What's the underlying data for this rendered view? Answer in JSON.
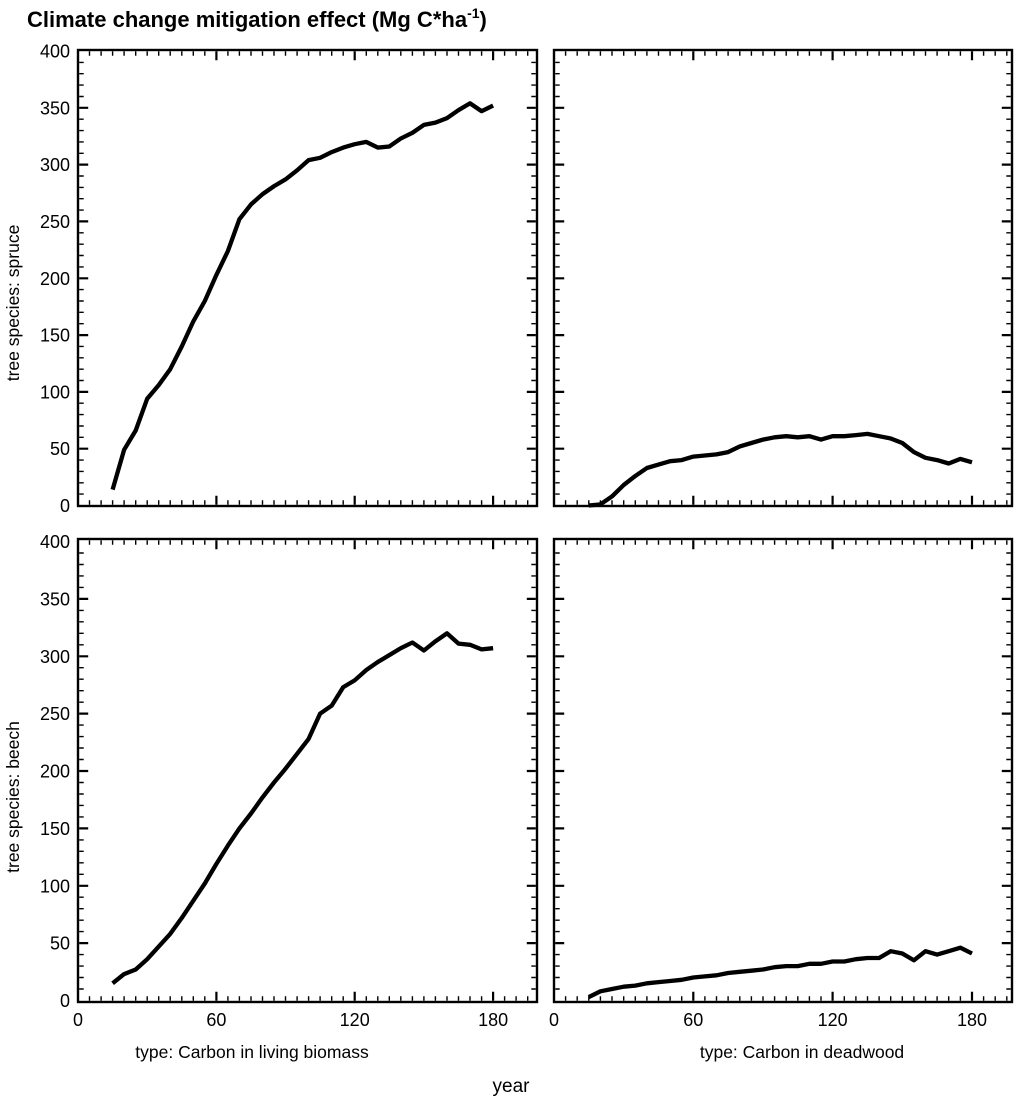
{
  "title": {
    "main": "Climate change mitigation effect (Mg C*ha",
    "sup": "-1",
    "close": ")"
  },
  "colors": {
    "foreground": "#000000",
    "background": "#ffffff"
  },
  "chart_data": {
    "type": "line",
    "layout": "2x2-trellis",
    "title": "Climate change mitigation effect (Mg C*ha^-1)",
    "xlabel": "year",
    "grid": false,
    "legend": false,
    "x_tick_labels": [
      0,
      60,
      120,
      180
    ],
    "y_tick_labels": [
      0,
      50,
      100,
      150,
      200,
      250,
      300,
      350,
      400
    ],
    "x_minor_step": 5,
    "y_minor_step": 10,
    "xlim": [
      0,
      198
    ],
    "ylim": [
      0,
      400
    ],
    "rows": [
      "tree species: spruce",
      "tree species: beech"
    ],
    "cols": [
      "type: Carbon in living biomass",
      "type: Carbon in deadwood"
    ],
    "x": [
      15,
      20,
      25,
      30,
      35,
      40,
      45,
      50,
      55,
      60,
      65,
      70,
      75,
      80,
      85,
      90,
      95,
      100,
      105,
      110,
      115,
      120,
      125,
      130,
      135,
      140,
      145,
      150,
      155,
      160,
      165,
      170,
      175,
      180
    ],
    "panels": [
      {
        "row": 0,
        "col": 0,
        "row_label": "tree species: spruce",
        "col_label": "type: Carbon in living biomass",
        "values": [
          14,
          49,
          66,
          94,
          106,
          120,
          140,
          162,
          180,
          203,
          224,
          252,
          265,
          274,
          281,
          287,
          295,
          304,
          306,
          311,
          315,
          318,
          320,
          315,
          316,
          323,
          328,
          335,
          337,
          341,
          348,
          354,
          347,
          352
        ]
      },
      {
        "row": 0,
        "col": 1,
        "row_label": "tree species: spruce",
        "col_label": "type: Carbon in deadwood",
        "values": [
          0,
          1,
          8,
          18,
          26,
          33,
          36,
          39,
          40,
          43,
          44,
          45,
          47,
          52,
          55,
          58,
          60,
          61,
          60,
          61,
          58,
          61,
          61,
          62,
          63,
          61,
          59,
          55,
          47,
          42,
          40,
          37,
          41,
          38
        ]
      },
      {
        "row": 1,
        "col": 0,
        "row_label": "tree species: beech",
        "col_label": "type: Carbon in living biomass",
        "values": [
          15,
          23,
          27,
          36,
          47,
          58,
          72,
          87,
          102,
          119,
          135,
          150,
          163,
          177,
          190,
          202,
          215,
          228,
          250,
          257,
          273,
          279,
          288,
          295,
          301,
          307,
          312,
          305,
          313,
          320,
          311,
          310,
          306,
          307
        ]
      },
      {
        "row": 1,
        "col": 1,
        "row_label": "tree species: beech",
        "col_label": "type: Carbon in deadwood",
        "values": [
          3,
          8,
          10,
          12,
          13,
          15,
          16,
          17,
          18,
          20,
          21,
          22,
          24,
          25,
          26,
          27,
          29,
          30,
          30,
          32,
          32,
          34,
          34,
          36,
          37,
          37,
          43,
          41,
          35,
          43,
          40,
          43,
          46,
          41
        ]
      }
    ]
  }
}
